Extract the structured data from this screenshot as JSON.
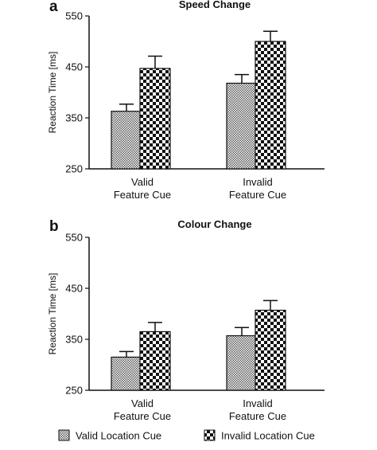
{
  "chart_data": [
    {
      "type": "bar",
      "panel_label": "a",
      "title": "Speed Change",
      "ylabel": "Reaction  Time [ms]",
      "xlabel": "",
      "ylim": [
        250,
        550
      ],
      "yticks": [
        250,
        350,
        450,
        550
      ],
      "categories": [
        {
          "line1": "Valid",
          "line2": "Feature Cue"
        },
        {
          "line1": "Invalid",
          "line2": "Feature Cue"
        }
      ],
      "series": [
        {
          "name": "Valid Location Cue",
          "values": [
            363,
            418
          ],
          "errors": [
            14,
            17
          ]
        },
        {
          "name": "Invalid Location Cue",
          "values": [
            447,
            500
          ],
          "errors": [
            24,
            20
          ]
        }
      ]
    },
    {
      "type": "bar",
      "panel_label": "b",
      "title": "Colour Change",
      "ylabel": "Reaction  Time [ms]",
      "xlabel": "",
      "ylim": [
        250,
        550
      ],
      "yticks": [
        250,
        350,
        450,
        550
      ],
      "categories": [
        {
          "line1": "Valid",
          "line2": "Feature Cue"
        },
        {
          "line1": "Invalid",
          "line2": "Feature Cue"
        }
      ],
      "series": [
        {
          "name": "Valid Location Cue",
          "values": [
            315,
            357
          ],
          "errors": [
            11,
            16
          ]
        },
        {
          "name": "Invalid Location Cue",
          "values": [
            365,
            407
          ],
          "errors": [
            18,
            19
          ]
        }
      ]
    }
  ],
  "legend": {
    "placement": "bottom",
    "items": [
      {
        "label": "Valid Location Cue",
        "pattern": "fine-checker"
      },
      {
        "label": "Invalid Location Cue",
        "pattern": "coarse-checker"
      }
    ]
  },
  "colors": {
    "ink": "#111111",
    "background": "#ffffff"
  }
}
